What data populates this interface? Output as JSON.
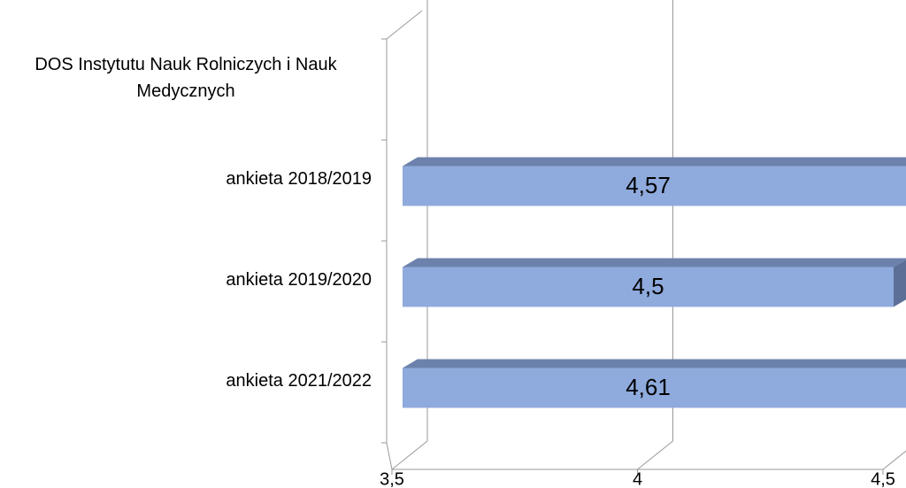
{
  "chart_data": {
    "type": "bar3d_horizontal",
    "categories": [
      "DOS Instytutu Nauk Rolniczych i Nauk Medycznych",
      "ankieta 2018/2019",
      "ankieta 2019/2020",
      "ankieta 2021/2022"
    ],
    "values": [
      null,
      4.57,
      4.5,
      4.61
    ],
    "value_labels": [
      null,
      "4,57",
      "4,5",
      "4,61"
    ],
    "color": "#8faadc",
    "xlim": [
      3.5,
      4.5
    ],
    "xticks": [
      {
        "value": 3.5,
        "label": "3,5"
      },
      4,
      {
        "value": 4.5,
        "label": "4,5"
      }
    ],
    "grid": true
  }
}
